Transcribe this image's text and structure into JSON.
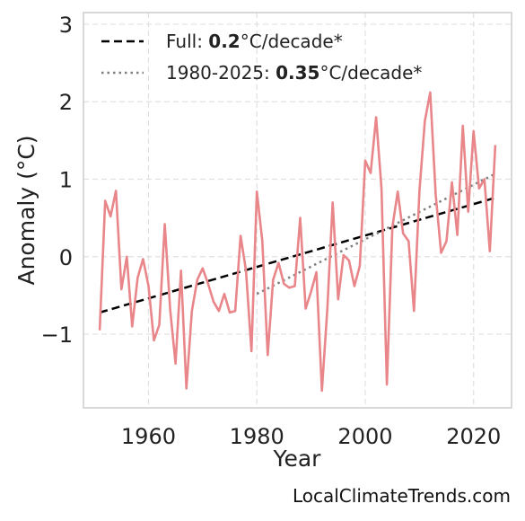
{
  "chart_data": {
    "type": "line",
    "xlabel": "Year",
    "ylabel": "Anomaly (°C)",
    "xlim": [
      1948,
      2027
    ],
    "ylim": [
      -1.95,
      3.15
    ],
    "xticks": [
      1960,
      1980,
      2000,
      2020
    ],
    "xtick_labels": [
      "1960",
      "1980",
      "2000",
      "2020"
    ],
    "yticks": [
      -1,
      0,
      1,
      2,
      3
    ],
    "ytick_labels": [
      "−1",
      "0",
      "1",
      "2",
      "3"
    ],
    "grid": true,
    "legend_position": "top-left",
    "series": [
      {
        "color": "#e8868a",
        "x": [
          1951,
          1952,
          1953,
          1954,
          1955,
          1956,
          1957,
          1958,
          1959,
          1960,
          1961,
          1962,
          1963,
          1964,
          1965,
          1966,
          1967,
          1968,
          1969,
          1970,
          1971,
          1972,
          1973,
          1974,
          1975,
          1976,
          1977,
          1978,
          1979,
          1980,
          1981,
          1982,
          1983,
          1984,
          1985,
          1986,
          1987,
          1988,
          1989,
          1990,
          1991,
          1992,
          1993,
          1994,
          1995,
          1996,
          1997,
          1998,
          1999,
          2000,
          2001,
          2002,
          2003,
          2004,
          2005,
          2006,
          2007,
          2008,
          2009,
          2010,
          2011,
          2012,
          2013,
          2014,
          2015,
          2016,
          2017,
          2018,
          2019,
          2020,
          2021,
          2022,
          2023,
          2024
        ],
        "y": [
          -0.95,
          0.72,
          0.52,
          0.85,
          -0.42,
          0.0,
          -0.9,
          -0.27,
          -0.03,
          -0.38,
          -1.08,
          -0.88,
          0.42,
          -0.68,
          -1.38,
          -0.18,
          -1.7,
          -0.7,
          -0.3,
          -0.15,
          -0.35,
          -0.58,
          -0.7,
          -0.48,
          -0.72,
          -0.7,
          0.27,
          -0.18,
          -1.22,
          0.84,
          0.2,
          -1.27,
          -0.3,
          -0.08,
          -0.35,
          -0.4,
          -0.38,
          0.5,
          -0.67,
          -0.45,
          -0.2,
          -1.73,
          -0.68,
          0.7,
          -0.55,
          0.02,
          -0.05,
          -0.38,
          -0.12,
          1.24,
          1.08,
          1.8,
          0.88,
          -1.65,
          0.38,
          0.84,
          0.3,
          0.2,
          -0.7,
          0.85,
          1.75,
          2.12,
          0.8,
          0.05,
          0.2,
          0.96,
          0.28,
          1.69,
          0.58,
          1.62,
          0.88,
          1.0,
          0.07,
          1.44
        ]
      }
    ],
    "trends": [
      {
        "name_prefix": "Full: ",
        "name_value": "0.2",
        "name_suffix": "°C/decade*",
        "style": "dashed",
        "color": "#000000",
        "x": [
          1951,
          2024
        ],
        "y": [
          -0.72,
          0.76
        ]
      },
      {
        "name_prefix": "1980-2025: ",
        "name_value": "0.35",
        "name_suffix": "°C/decade*",
        "style": "dotted",
        "color": "#7f7f7f",
        "x": [
          1980,
          2024
        ],
        "y": [
          -0.48,
          1.07
        ]
      }
    ]
  },
  "source": "LocalClimateTrends.com"
}
